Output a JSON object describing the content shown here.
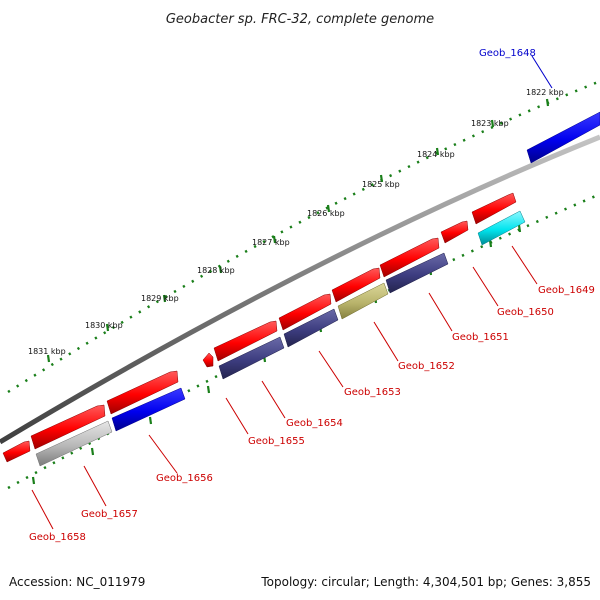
{
  "title": "Geobacter sp. FRC-32, complete genome",
  "footer": {
    "accession": "Accession: NC_011979",
    "summary": "Topology: circular; Length: 4,304,501 bp; Genes: 3,855"
  },
  "kbp_ticks": [
    "1822 kbp",
    "1823 kbp",
    "1824 kbp",
    "1825 kbp",
    "1826 kbp",
    "1827 kbp",
    "1828 kbp",
    "1829 kbp",
    "1830 kbp",
    "1831 kbp"
  ],
  "genes": [
    {
      "id": "Geob_1648",
      "color": "#0000cc"
    },
    {
      "id": "Geob_1649",
      "color": "#cc0000"
    },
    {
      "id": "Geob_1650",
      "color": "#cc0000"
    },
    {
      "id": "Geob_1651",
      "color": "#cc0000"
    },
    {
      "id": "Geob_1652",
      "color": "#cc0000"
    },
    {
      "id": "Geob_1653",
      "color": "#cc0000"
    },
    {
      "id": "Geob_1654",
      "color": "#cc0000"
    },
    {
      "id": "Geob_1655",
      "color": "#cc0000"
    },
    {
      "id": "Geob_1656",
      "color": "#cc0000"
    },
    {
      "id": "Geob_1657",
      "color": "#cc0000"
    },
    {
      "id": "Geob_1658",
      "color": "#cc0000"
    }
  ],
  "colors": {
    "forward_gene": "#ff0000",
    "blue_gene": "#0000ee",
    "navy_gene": "#3d3d80",
    "olive_gene": "#b9b46c",
    "cyan_gene": "#00e5ee",
    "grey_gene": "#b0b0b0",
    "backbone": "#7a7a7a",
    "tick": "#1a7f1a"
  }
}
